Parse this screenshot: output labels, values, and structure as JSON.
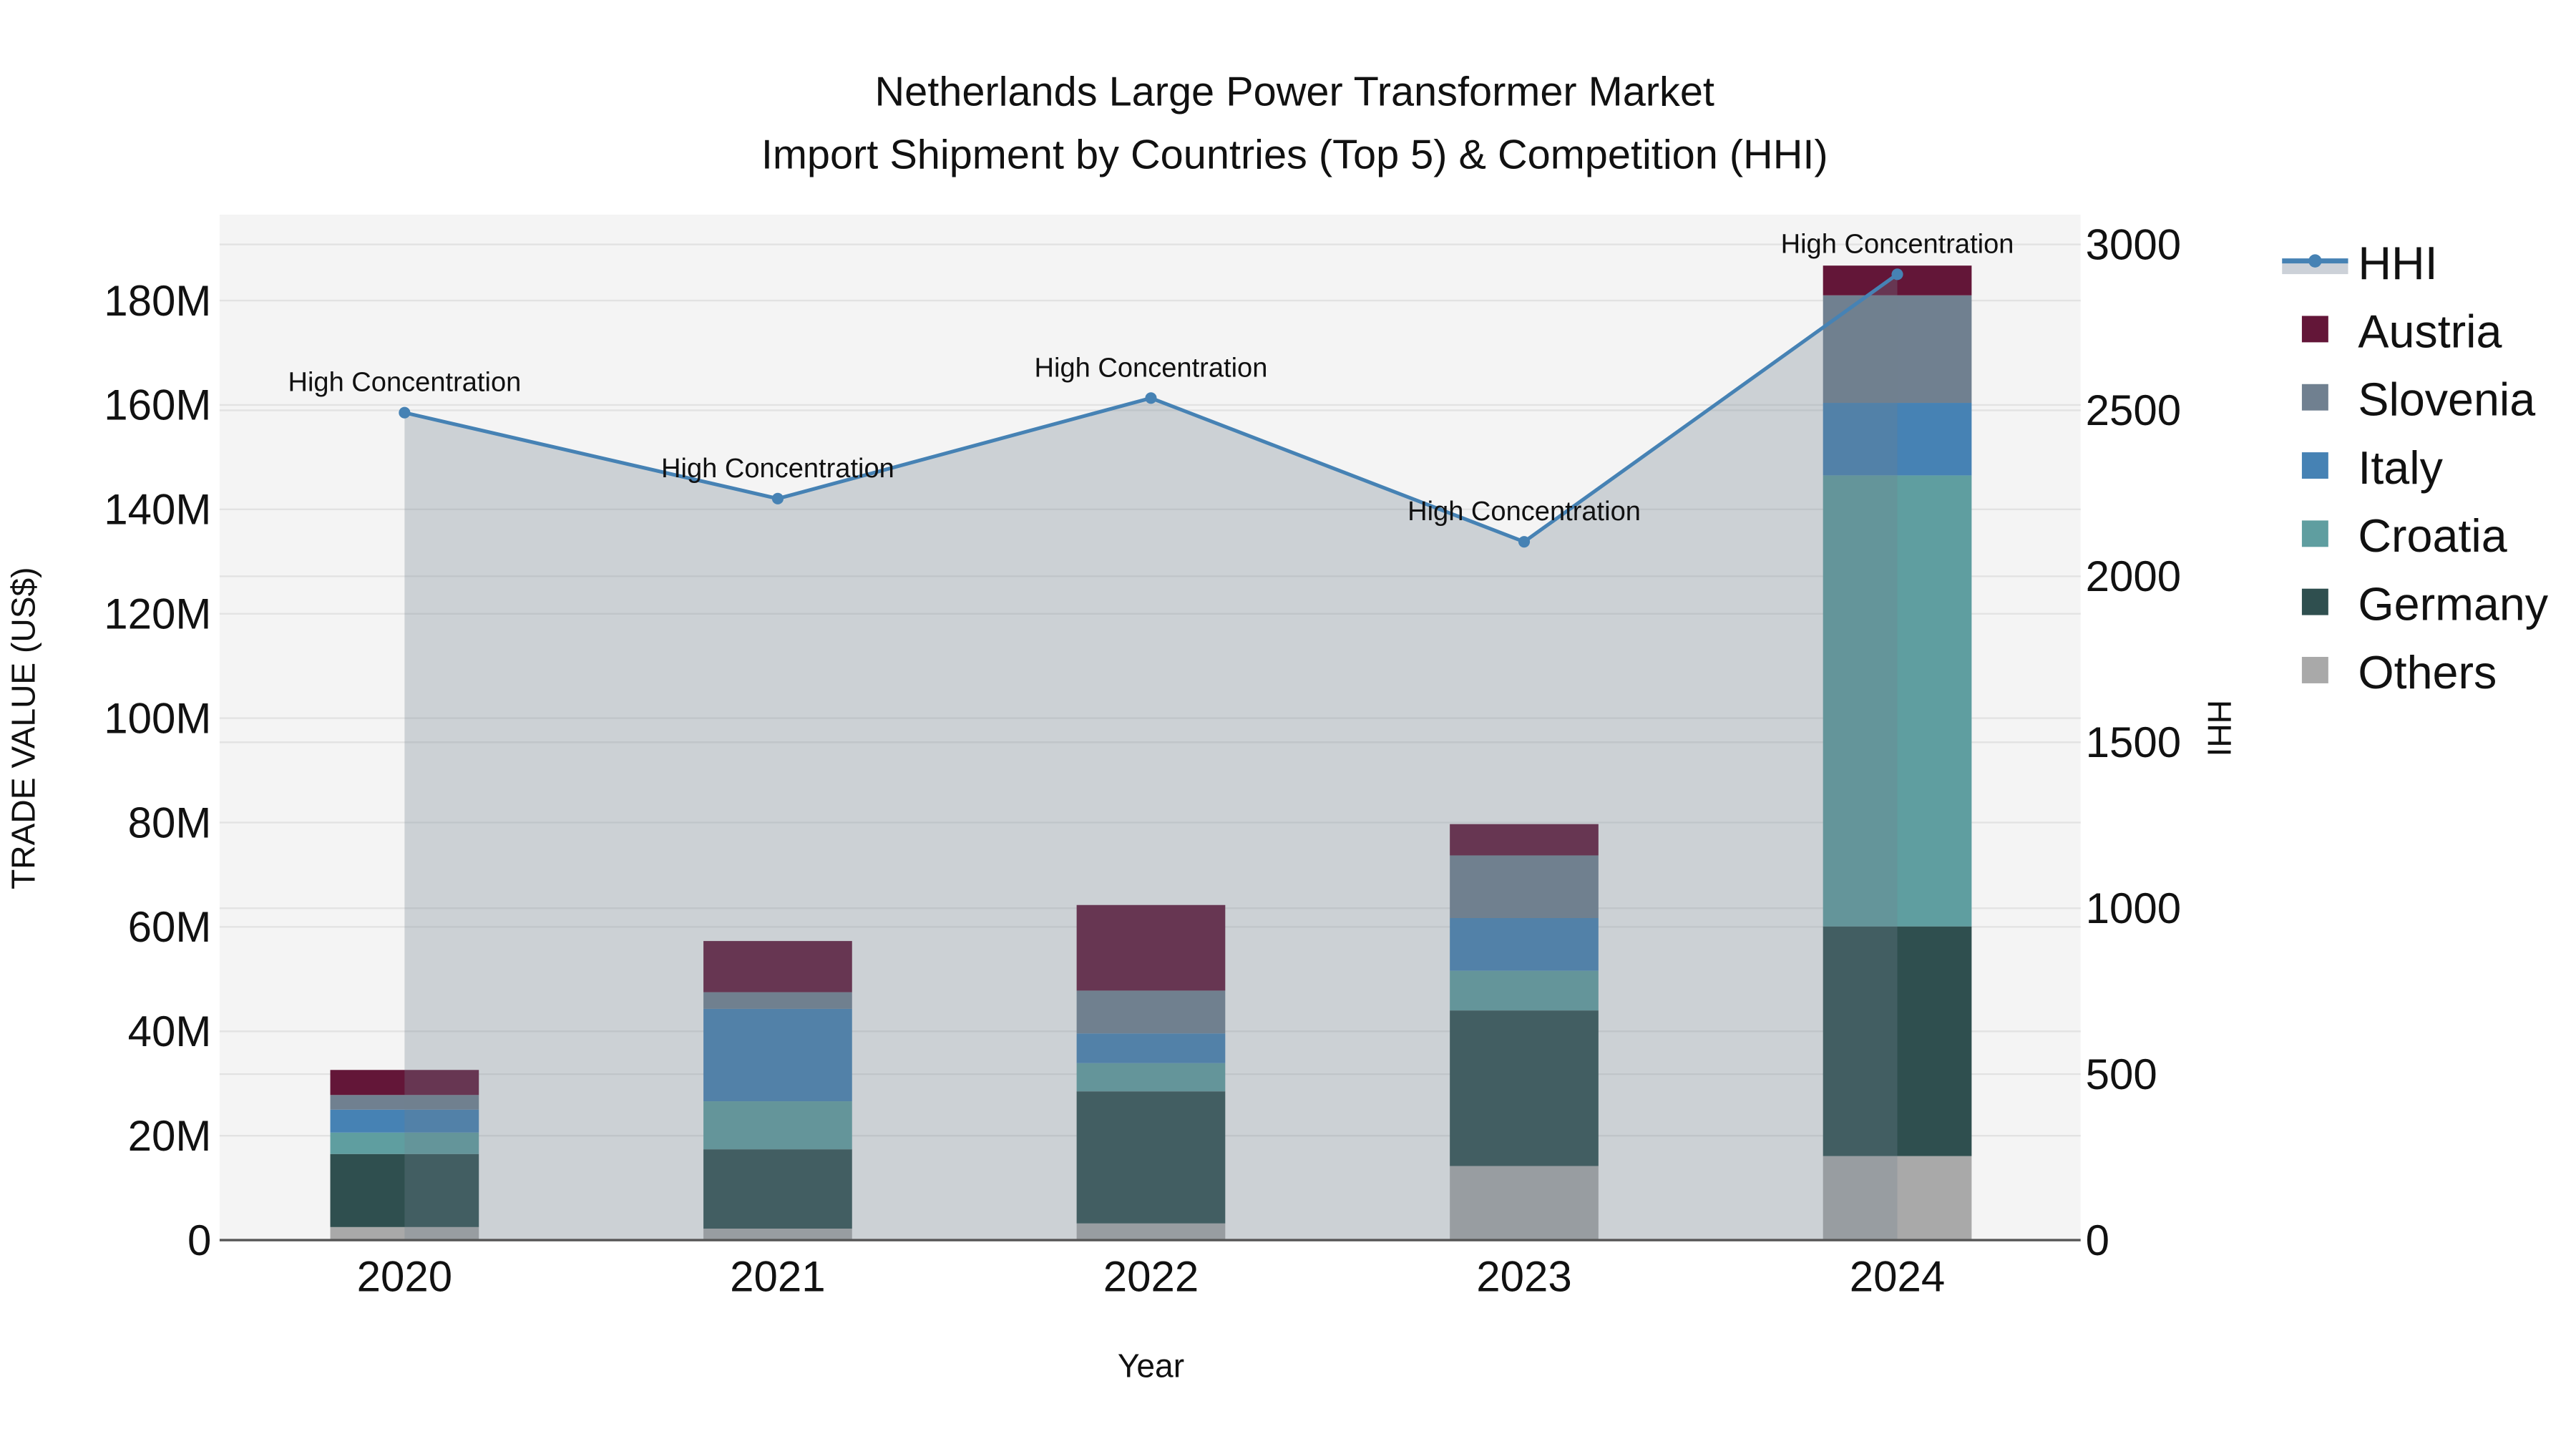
{
  "chart_data": {
    "type": "bar",
    "stacked": true,
    "title_line1": "Netherlands Large Power Transformer Market",
    "title_line2": "Import Shipment by Countries (Top 5) & Competition (HHI)",
    "xlabel": "Year",
    "ylabel": "TRADE VALUE (US$)",
    "y2label": "HHI",
    "ylim": [
      0,
      190000000
    ],
    "y2lim": [
      0,
      3080
    ],
    "categories": [
      "2020",
      "2021",
      "2022",
      "2023",
      "2024"
    ],
    "y_ticks": [
      {
        "value": 0,
        "label": "0"
      },
      {
        "value": 20000000,
        "label": "20M"
      },
      {
        "value": 40000000,
        "label": "40M"
      },
      {
        "value": 60000000,
        "label": "60M"
      },
      {
        "value": 80000000,
        "label": "80M"
      },
      {
        "value": 100000000,
        "label": "100M"
      },
      {
        "value": 120000000,
        "label": "120M"
      },
      {
        "value": 140000000,
        "label": "140M"
      },
      {
        "value": 160000000,
        "label": "160M"
      },
      {
        "value": 180000000,
        "label": "180M"
      }
    ],
    "y2_ticks": [
      {
        "value": 0,
        "label": "0"
      },
      {
        "value": 500,
        "label": "500"
      },
      {
        "value": 1000,
        "label": "1000"
      },
      {
        "value": 1500,
        "label": "1500"
      },
      {
        "value": 2000,
        "label": "2000"
      },
      {
        "value": 2500,
        "label": "2500"
      },
      {
        "value": 3000,
        "label": "3000"
      }
    ],
    "series": [
      {
        "name": "Others",
        "color": "#a9a9a9",
        "values": [
          2500000,
          2200000,
          3200000,
          14200000,
          16100000
        ]
      },
      {
        "name": "Germany",
        "color": "#2f4f4f",
        "values": [
          14000000,
          15200000,
          25300000,
          29800000,
          44000000
        ]
      },
      {
        "name": "Croatia",
        "color": "#5f9ea0",
        "values": [
          4100000,
          9200000,
          5400000,
          7600000,
          86400000
        ]
      },
      {
        "name": "Italy",
        "color": "#4682b4",
        "values": [
          4400000,
          17700000,
          5700000,
          10100000,
          13900000
        ]
      },
      {
        "name": "Slovenia",
        "color": "#708090",
        "values": [
          2800000,
          3200000,
          8200000,
          12000000,
          20600000
        ]
      },
      {
        "name": "Austria",
        "color": "#631638",
        "values": [
          4800000,
          9800000,
          16400000,
          6000000,
          5700000
        ]
      }
    ],
    "hhi": {
      "name": "HHI",
      "color": "#4682b4",
      "values": [
        2493,
        2234,
        2537,
        2104,
        2910
      ],
      "annotations": [
        "High Concentration",
        "High Concentration",
        "High Concentration",
        "High Concentration",
        "High Concentration"
      ]
    },
    "legend_order": [
      "HHI",
      "Austria",
      "Slovenia",
      "Italy",
      "Croatia",
      "Germany",
      "Others"
    ],
    "legend_position": "right",
    "grid": true
  }
}
